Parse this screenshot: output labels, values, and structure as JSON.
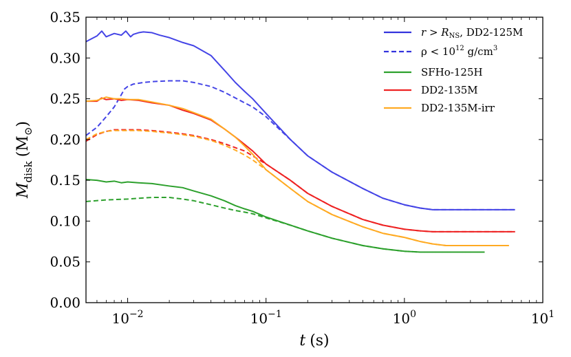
{
  "chart_data": {
    "type": "line",
    "title": "",
    "xlabel": "t (s)",
    "xlabel_var": "t",
    "xlabel_unit": "(s)",
    "ylabel": "M_disk (M_sun)",
    "ylabel_main": "M",
    "ylabel_sub": "disk",
    "ylabel_unit_open": "(M",
    "ylabel_unit_sun": "⊙",
    "ylabel_unit_close": ")",
    "xscale": "log",
    "xlim": [
      0.005,
      10
    ],
    "ylim": [
      0.0,
      0.35
    ],
    "grid": false,
    "legend_position": "top-right",
    "x_ticks": [
      {
        "value": 0.01,
        "base": "10",
        "exp": "−2"
      },
      {
        "value": 0.1,
        "base": "10",
        "exp": "−1"
      },
      {
        "value": 1,
        "base": "10",
        "exp": "0"
      },
      {
        "value": 10,
        "base": "10",
        "exp": "1"
      }
    ],
    "y_ticks": [
      {
        "value": 0.0,
        "label": "0.00"
      },
      {
        "value": 0.05,
        "label": "0.05"
      },
      {
        "value": 0.1,
        "label": "0.10"
      },
      {
        "value": 0.15,
        "label": "0.15"
      },
      {
        "value": 0.2,
        "label": "0.20"
      },
      {
        "value": 0.25,
        "label": "0.25"
      },
      {
        "value": 0.3,
        "label": "0.30"
      },
      {
        "value": 0.35,
        "label": "0.35"
      }
    ],
    "legend": [
      {
        "label": "r > R_NS, DD2-125M",
        "label_parts": [
          "r > R",
          "NS",
          ", DD2-125M"
        ],
        "color": "#3333dd",
        "dash": false
      },
      {
        "label": "rho < 10^12 g/cm^3",
        "label_parts": [
          "ρ < 10",
          "12",
          " g/cm",
          "3"
        ],
        "color": "#3333dd",
        "dash": true
      },
      {
        "label": "SFHo-125H",
        "color": "#2ca02c",
        "dash": false
      },
      {
        "label": "DD2-135M",
        "color": "#ee2222",
        "dash": false
      },
      {
        "label": "DD2-135M-irr",
        "color": "#ffaa22",
        "dash": false
      }
    ],
    "series": [
      {
        "name": "DD2-125M (r > R_NS)",
        "color": "#4444e6",
        "dash": false,
        "x": [
          0.005,
          0.006,
          0.0065,
          0.007,
          0.008,
          0.009,
          0.0097,
          0.0105,
          0.011,
          0.012,
          0.013,
          0.015,
          0.017,
          0.02,
          0.025,
          0.03,
          0.04,
          0.05,
          0.06,
          0.07,
          0.08,
          0.1,
          0.15,
          0.2,
          0.3,
          0.5,
          0.7,
          1.0,
          1.3,
          1.6,
          2.0,
          3.0,
          6.3
        ],
        "y": [
          0.32,
          0.327,
          0.333,
          0.326,
          0.33,
          0.328,
          0.333,
          0.326,
          0.329,
          0.331,
          0.332,
          0.331,
          0.328,
          0.325,
          0.319,
          0.315,
          0.303,
          0.285,
          0.27,
          0.259,
          0.25,
          0.232,
          0.2,
          0.18,
          0.16,
          0.14,
          0.128,
          0.12,
          0.116,
          0.114,
          0.114,
          0.114,
          0.114
        ]
      },
      {
        "name": "DD2-125M (rho < 1e12)",
        "color": "#4444e6",
        "dash": true,
        "x": [
          0.005,
          0.006,
          0.007,
          0.008,
          0.009,
          0.0095,
          0.01,
          0.011,
          0.013,
          0.015,
          0.02,
          0.025,
          0.03,
          0.04,
          0.05,
          0.06,
          0.07,
          0.08,
          0.1,
          0.15,
          0.2,
          0.3,
          0.5,
          0.7,
          1.0,
          1.3,
          1.6,
          2.0,
          3.0,
          6.3
        ],
        "y": [
          0.205,
          0.215,
          0.228,
          0.24,
          0.255,
          0.262,
          0.265,
          0.268,
          0.27,
          0.271,
          0.272,
          0.272,
          0.27,
          0.265,
          0.258,
          0.251,
          0.245,
          0.24,
          0.228,
          0.2,
          0.18,
          0.16,
          0.14,
          0.128,
          0.12,
          0.116,
          0.114,
          0.114,
          0.114,
          0.114
        ]
      },
      {
        "name": "DD2-135M",
        "color": "#ee2222",
        "dash": false,
        "x": [
          0.005,
          0.006,
          0.0065,
          0.007,
          0.008,
          0.009,
          0.01,
          0.012,
          0.015,
          0.02,
          0.025,
          0.03,
          0.04,
          0.05,
          0.06,
          0.07,
          0.08,
          0.1,
          0.15,
          0.2,
          0.3,
          0.5,
          0.7,
          1.0,
          1.3,
          1.6,
          2.0,
          3.0,
          6.3
        ],
        "y": [
          0.247,
          0.247,
          0.251,
          0.249,
          0.25,
          0.248,
          0.249,
          0.248,
          0.245,
          0.242,
          0.236,
          0.232,
          0.224,
          0.213,
          0.203,
          0.194,
          0.186,
          0.17,
          0.15,
          0.134,
          0.118,
          0.102,
          0.095,
          0.09,
          0.088,
          0.087,
          0.087,
          0.087,
          0.087
        ]
      },
      {
        "name": "DD2-135M (rho < 1e12)",
        "color": "#ee2222",
        "dash": true,
        "x": [
          0.005,
          0.006,
          0.007,
          0.008,
          0.009,
          0.01,
          0.012,
          0.015,
          0.02,
          0.025,
          0.03,
          0.04,
          0.05,
          0.06,
          0.07,
          0.08,
          0.1,
          0.15,
          0.2,
          0.3,
          0.5,
          0.7,
          1.0,
          1.3,
          1.6,
          2.0,
          3.0,
          6.3
        ],
        "y": [
          0.198,
          0.206,
          0.21,
          0.212,
          0.212,
          0.212,
          0.212,
          0.211,
          0.209,
          0.207,
          0.205,
          0.2,
          0.195,
          0.19,
          0.186,
          0.18,
          0.17,
          0.15,
          0.134,
          0.118,
          0.102,
          0.095,
          0.09,
          0.088,
          0.087,
          0.087,
          0.087,
          0.087
        ]
      },
      {
        "name": "DD2-135M-irr",
        "color": "#ffaa22",
        "dash": false,
        "x": [
          0.005,
          0.006,
          0.007,
          0.008,
          0.009,
          0.01,
          0.012,
          0.015,
          0.02,
          0.025,
          0.03,
          0.04,
          0.05,
          0.06,
          0.07,
          0.08,
          0.1,
          0.15,
          0.2,
          0.3,
          0.5,
          0.7,
          1.0,
          1.3,
          1.6,
          2.0,
          3.0,
          5.7
        ],
        "y": [
          0.247,
          0.248,
          0.252,
          0.25,
          0.25,
          0.249,
          0.249,
          0.246,
          0.242,
          0.238,
          0.233,
          0.225,
          0.213,
          0.203,
          0.192,
          0.182,
          0.163,
          0.14,
          0.124,
          0.108,
          0.093,
          0.085,
          0.08,
          0.075,
          0.072,
          0.07,
          0.07,
          0.07
        ]
      },
      {
        "name": "DD2-135M-irr (rho < 1e12)",
        "color": "#ffaa22",
        "dash": true,
        "x": [
          0.005,
          0.006,
          0.007,
          0.008,
          0.009,
          0.01,
          0.012,
          0.015,
          0.02,
          0.025,
          0.03,
          0.04,
          0.05,
          0.06,
          0.07,
          0.08,
          0.1,
          0.15,
          0.2,
          0.3,
          0.5,
          0.7,
          1.0,
          1.3,
          1.6,
          2.0,
          3.0,
          5.7
        ],
        "y": [
          0.2,
          0.207,
          0.21,
          0.211,
          0.211,
          0.211,
          0.211,
          0.21,
          0.208,
          0.206,
          0.204,
          0.199,
          0.193,
          0.187,
          0.181,
          0.175,
          0.163,
          0.14,
          0.124,
          0.108,
          0.093,
          0.085,
          0.08,
          0.075,
          0.072,
          0.07,
          0.07,
          0.07
        ]
      },
      {
        "name": "SFHo-125H",
        "color": "#2ca02c",
        "dash": false,
        "x": [
          0.005,
          0.006,
          0.007,
          0.008,
          0.009,
          0.01,
          0.012,
          0.015,
          0.02,
          0.025,
          0.03,
          0.04,
          0.05,
          0.06,
          0.07,
          0.08,
          0.1,
          0.15,
          0.2,
          0.3,
          0.5,
          0.7,
          1.0,
          1.3,
          2.0,
          3.8
        ],
        "y": [
          0.151,
          0.15,
          0.148,
          0.149,
          0.147,
          0.148,
          0.147,
          0.146,
          0.143,
          0.141,
          0.137,
          0.131,
          0.125,
          0.119,
          0.115,
          0.112,
          0.105,
          0.095,
          0.088,
          0.079,
          0.07,
          0.066,
          0.063,
          0.062,
          0.062,
          0.062
        ]
      },
      {
        "name": "SFHo-125H (rho < 1e12)",
        "color": "#2ca02c",
        "dash": true,
        "x": [
          0.005,
          0.007,
          0.01,
          0.012,
          0.015,
          0.02,
          0.025,
          0.03,
          0.04,
          0.05,
          0.06,
          0.07,
          0.08,
          0.1,
          0.15,
          0.2,
          0.3,
          0.5,
          0.7,
          1.0,
          1.3,
          2.0,
          3.8
        ],
        "y": [
          0.124,
          0.126,
          0.127,
          0.128,
          0.129,
          0.129,
          0.127,
          0.125,
          0.12,
          0.116,
          0.113,
          0.111,
          0.109,
          0.104,
          0.095,
          0.088,
          0.079,
          0.07,
          0.066,
          0.063,
          0.062,
          0.062,
          0.062
        ]
      }
    ]
  }
}
